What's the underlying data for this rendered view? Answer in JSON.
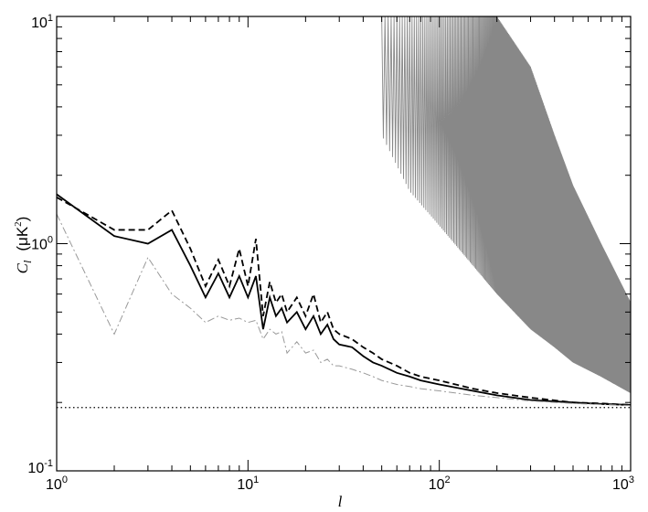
{
  "chart_data": {
    "type": "line",
    "xscale": "log",
    "yscale": "log",
    "xlim": [
      1,
      1000
    ],
    "ylim": [
      0.1,
      10
    ],
    "xlabel": "l",
    "ylabel": {
      "symbol": "C",
      "subscript": "l",
      "unit": "(μK",
      "unit_exp": "2",
      "unit_close": ")"
    },
    "x_ticks": [
      {
        "value": 1,
        "base": "10",
        "exp": "0"
      },
      {
        "value": 10,
        "base": "10",
        "exp": "1"
      },
      {
        "value": 100,
        "base": "10",
        "exp": "2"
      },
      {
        "value": 1000,
        "base": "10",
        "exp": "3"
      }
    ],
    "y_ticks": [
      {
        "value": 0.1,
        "base": "10",
        "exp": "-1"
      },
      {
        "value": 1,
        "base": "10",
        "exp": "0"
      },
      {
        "value": 10,
        "base": "10",
        "exp": "1"
      }
    ],
    "grid": false,
    "legend": "none",
    "series": [
      {
        "style": "solid",
        "color": "#000000",
        "x": [
          1,
          2,
          3,
          4,
          5,
          6,
          7,
          8,
          9,
          10,
          11,
          12,
          13,
          14,
          15,
          16,
          18,
          20,
          22,
          24,
          26,
          28,
          30,
          35,
          40,
          45,
          50,
          60,
          70,
          80,
          100,
          150,
          200,
          300,
          500,
          700,
          1000
        ],
        "y": [
          1.65,
          1.08,
          1.0,
          1.15,
          0.8,
          0.58,
          0.74,
          0.58,
          0.72,
          0.58,
          0.72,
          0.42,
          0.58,
          0.48,
          0.52,
          0.45,
          0.5,
          0.42,
          0.48,
          0.4,
          0.44,
          0.38,
          0.36,
          0.35,
          0.32,
          0.3,
          0.29,
          0.27,
          0.26,
          0.25,
          0.24,
          0.225,
          0.215,
          0.205,
          0.2,
          0.197,
          0.195
        ]
      },
      {
        "style": "dashed",
        "color": "#000000",
        "x": [
          1,
          2,
          3,
          4,
          5,
          6,
          7,
          8,
          9,
          10,
          11,
          12,
          13,
          14,
          15,
          16,
          18,
          20,
          22,
          24,
          26,
          28,
          30,
          35,
          40,
          45,
          50,
          60,
          70,
          80,
          100,
          150,
          200,
          300,
          500,
          700,
          1000
        ],
        "y": [
          1.6,
          1.15,
          1.15,
          1.4,
          0.95,
          0.65,
          0.85,
          0.65,
          0.95,
          0.65,
          1.05,
          0.48,
          0.68,
          0.55,
          0.6,
          0.5,
          0.58,
          0.48,
          0.6,
          0.45,
          0.5,
          0.42,
          0.4,
          0.38,
          0.35,
          0.33,
          0.31,
          0.29,
          0.27,
          0.26,
          0.25,
          0.23,
          0.22,
          0.21,
          0.2,
          0.198,
          0.195
        ]
      },
      {
        "style": "dashdot",
        "color": "#999999",
        "x": [
          1,
          2,
          3,
          4,
          5,
          6,
          7,
          8,
          9,
          10,
          11,
          12,
          13,
          14,
          15,
          16,
          18,
          20,
          22,
          24,
          26,
          28,
          30,
          35,
          40,
          45,
          50,
          60,
          70,
          80,
          100,
          150,
          200,
          300,
          500,
          700,
          1000
        ],
        "y": [
          1.35,
          0.4,
          0.87,
          0.6,
          0.52,
          0.45,
          0.48,
          0.46,
          0.47,
          0.45,
          0.46,
          0.38,
          0.42,
          0.4,
          0.41,
          0.33,
          0.37,
          0.33,
          0.34,
          0.3,
          0.31,
          0.29,
          0.29,
          0.28,
          0.27,
          0.26,
          0.25,
          0.24,
          0.235,
          0.23,
          0.225,
          0.215,
          0.21,
          0.203,
          0.198,
          0.196,
          0.194
        ]
      },
      {
        "style": "dotted",
        "color": "#000000",
        "x": [
          1,
          1000
        ],
        "y": [
          0.19,
          0.19
        ]
      },
      {
        "style": "solid",
        "color": "#888888",
        "kind": "oscillating-band",
        "x": [
          50,
          70,
          100,
          150,
          200,
          300,
          400,
          500,
          700,
          1000
        ],
        "upper": [
          10,
          10,
          10,
          10,
          10,
          6.0,
          3.0,
          1.8,
          1.0,
          0.55
        ],
        "lower": [
          3.0,
          1.7,
          1.2,
          0.8,
          0.6,
          0.42,
          0.35,
          0.3,
          0.26,
          0.22
        ]
      }
    ]
  }
}
